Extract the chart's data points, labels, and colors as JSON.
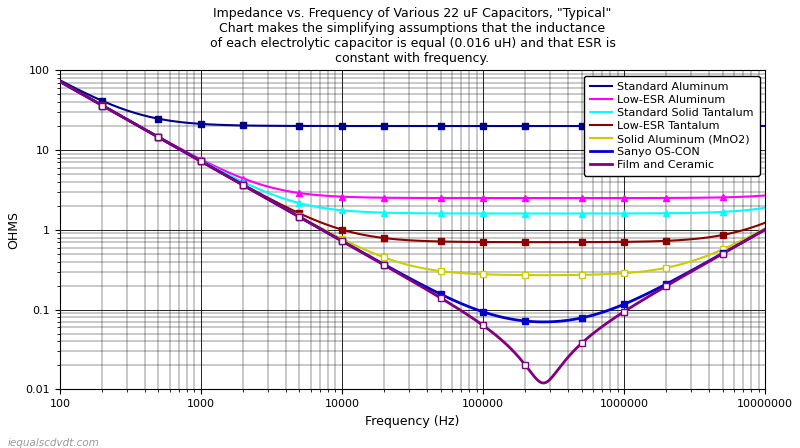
{
  "title": "Impedance vs. Frequency of Various 22 uF Capacitors, \"Typical\"\nChart makes the simplifying assumptions that the inductance\nof each electrolytic capacitor is equal (0.016 uH) and that ESR is\nconstant with frequency.",
  "xlabel": "Frequency (Hz)",
  "ylabel": "OHMS",
  "xlim": [
    100,
    10000000
  ],
  "ylim": [
    0.01,
    100
  ],
  "background_color": "#ffffff",
  "plot_bg_color": "#ffffff",
  "watermark": "iequalscdvdt.com",
  "series": [
    {
      "name": "Standard Aluminum",
      "color": "#00008B",
      "linewidth": 1.5,
      "marker": "s",
      "markersize": 5,
      "markerfilled": true,
      "ESR": 20.0,
      "L": 1.6e-08,
      "C": 2.2e-05
    },
    {
      "name": "Low-ESR Aluminum",
      "color": "#FF00FF",
      "linewidth": 1.5,
      "marker": "^",
      "markersize": 5,
      "markerfilled": true,
      "ESR": 2.5,
      "L": 1.6e-08,
      "C": 2.2e-05
    },
    {
      "name": "Standard Solid Tantalum",
      "color": "#00FFFF",
      "linewidth": 1.5,
      "marker": "^",
      "markersize": 5,
      "markerfilled": true,
      "ESR": 1.6,
      "L": 1.6e-08,
      "C": 2.2e-05
    },
    {
      "name": "Low-ESR Tantalum",
      "color": "#8B0000",
      "linewidth": 1.5,
      "marker": "s",
      "markersize": 5,
      "markerfilled": true,
      "ESR": 0.7,
      "L": 1.6e-08,
      "C": 2.2e-05
    },
    {
      "name": "Solid Aluminum (MnO2)",
      "color": "#CCCC00",
      "linewidth": 1.5,
      "marker": "s",
      "markersize": 5,
      "markerfilled": false,
      "ESR": 0.27,
      "L": 1.6e-08,
      "C": 2.2e-05
    },
    {
      "name": "Sanyo OS-CON",
      "color": "#0000CC",
      "linewidth": 2.0,
      "marker": "s",
      "markersize": 5,
      "markerfilled": true,
      "ESR": 0.07,
      "L": 1.6e-08,
      "C": 2.2e-05
    },
    {
      "name": "Film and Ceramic",
      "color": "#800080",
      "linewidth": 2.0,
      "marker": "s",
      "markersize": 5,
      "markerfilled": false,
      "ESR": 0.012,
      "L": 1.6e-08,
      "C": 2.2e-05
    }
  ],
  "grid_major_color": "#000000",
  "grid_minor_color": "#000000",
  "grid_major_lw": 0.6,
  "grid_minor_lw": 0.3,
  "title_fontsize": 9,
  "axis_label_fontsize": 9,
  "tick_fontsize": 8,
  "legend_fontsize": 8
}
